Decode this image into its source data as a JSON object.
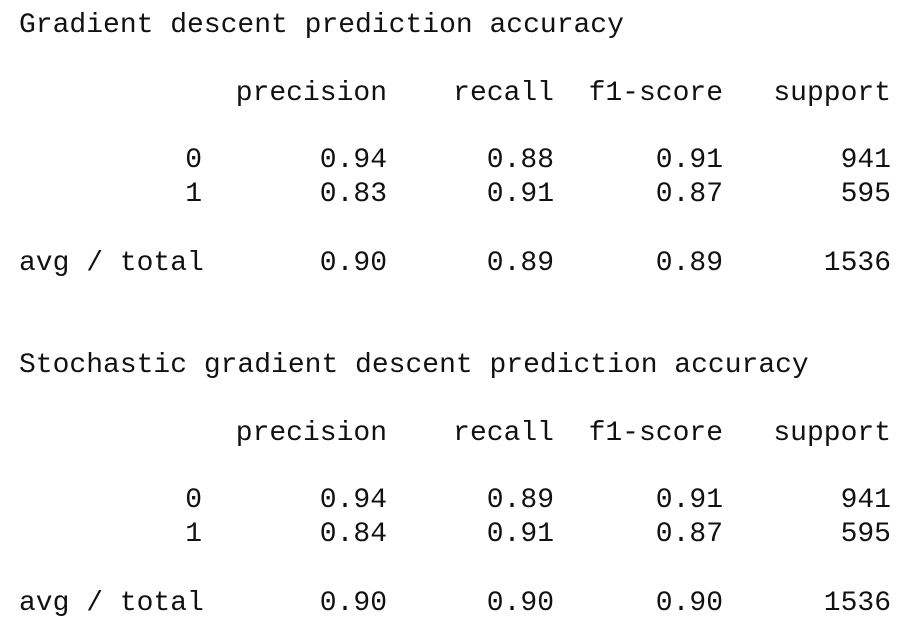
{
  "reports": [
    {
      "title": "Gradient descent prediction accuracy",
      "headers": {
        "precision": "precision",
        "recall": "recall",
        "f1": "f1-score",
        "support": "support"
      },
      "rows": [
        {
          "label": "0",
          "precision": "0.94",
          "recall": "0.88",
          "f1": "0.91",
          "support": "941"
        },
        {
          "label": "1",
          "precision": "0.83",
          "recall": "0.91",
          "f1": "0.87",
          "support": "595"
        }
      ],
      "avg": {
        "label": "avg / total",
        "precision": "0.90",
        "recall": "0.89",
        "f1": "0.89",
        "support": "1536"
      }
    },
    {
      "title": "Stochastic gradient descent prediction accuracy",
      "headers": {
        "precision": "precision",
        "recall": "recall",
        "f1": "f1-score",
        "support": "support"
      },
      "rows": [
        {
          "label": "0",
          "precision": "0.94",
          "recall": "0.89",
          "f1": "0.91",
          "support": "941"
        },
        {
          "label": "1",
          "precision": "0.84",
          "recall": "0.91",
          "f1": "0.87",
          "support": "595"
        }
      ],
      "avg": {
        "label": "avg / total",
        "precision": "0.90",
        "recall": "0.90",
        "f1": "0.90",
        "support": "1536"
      }
    }
  ]
}
